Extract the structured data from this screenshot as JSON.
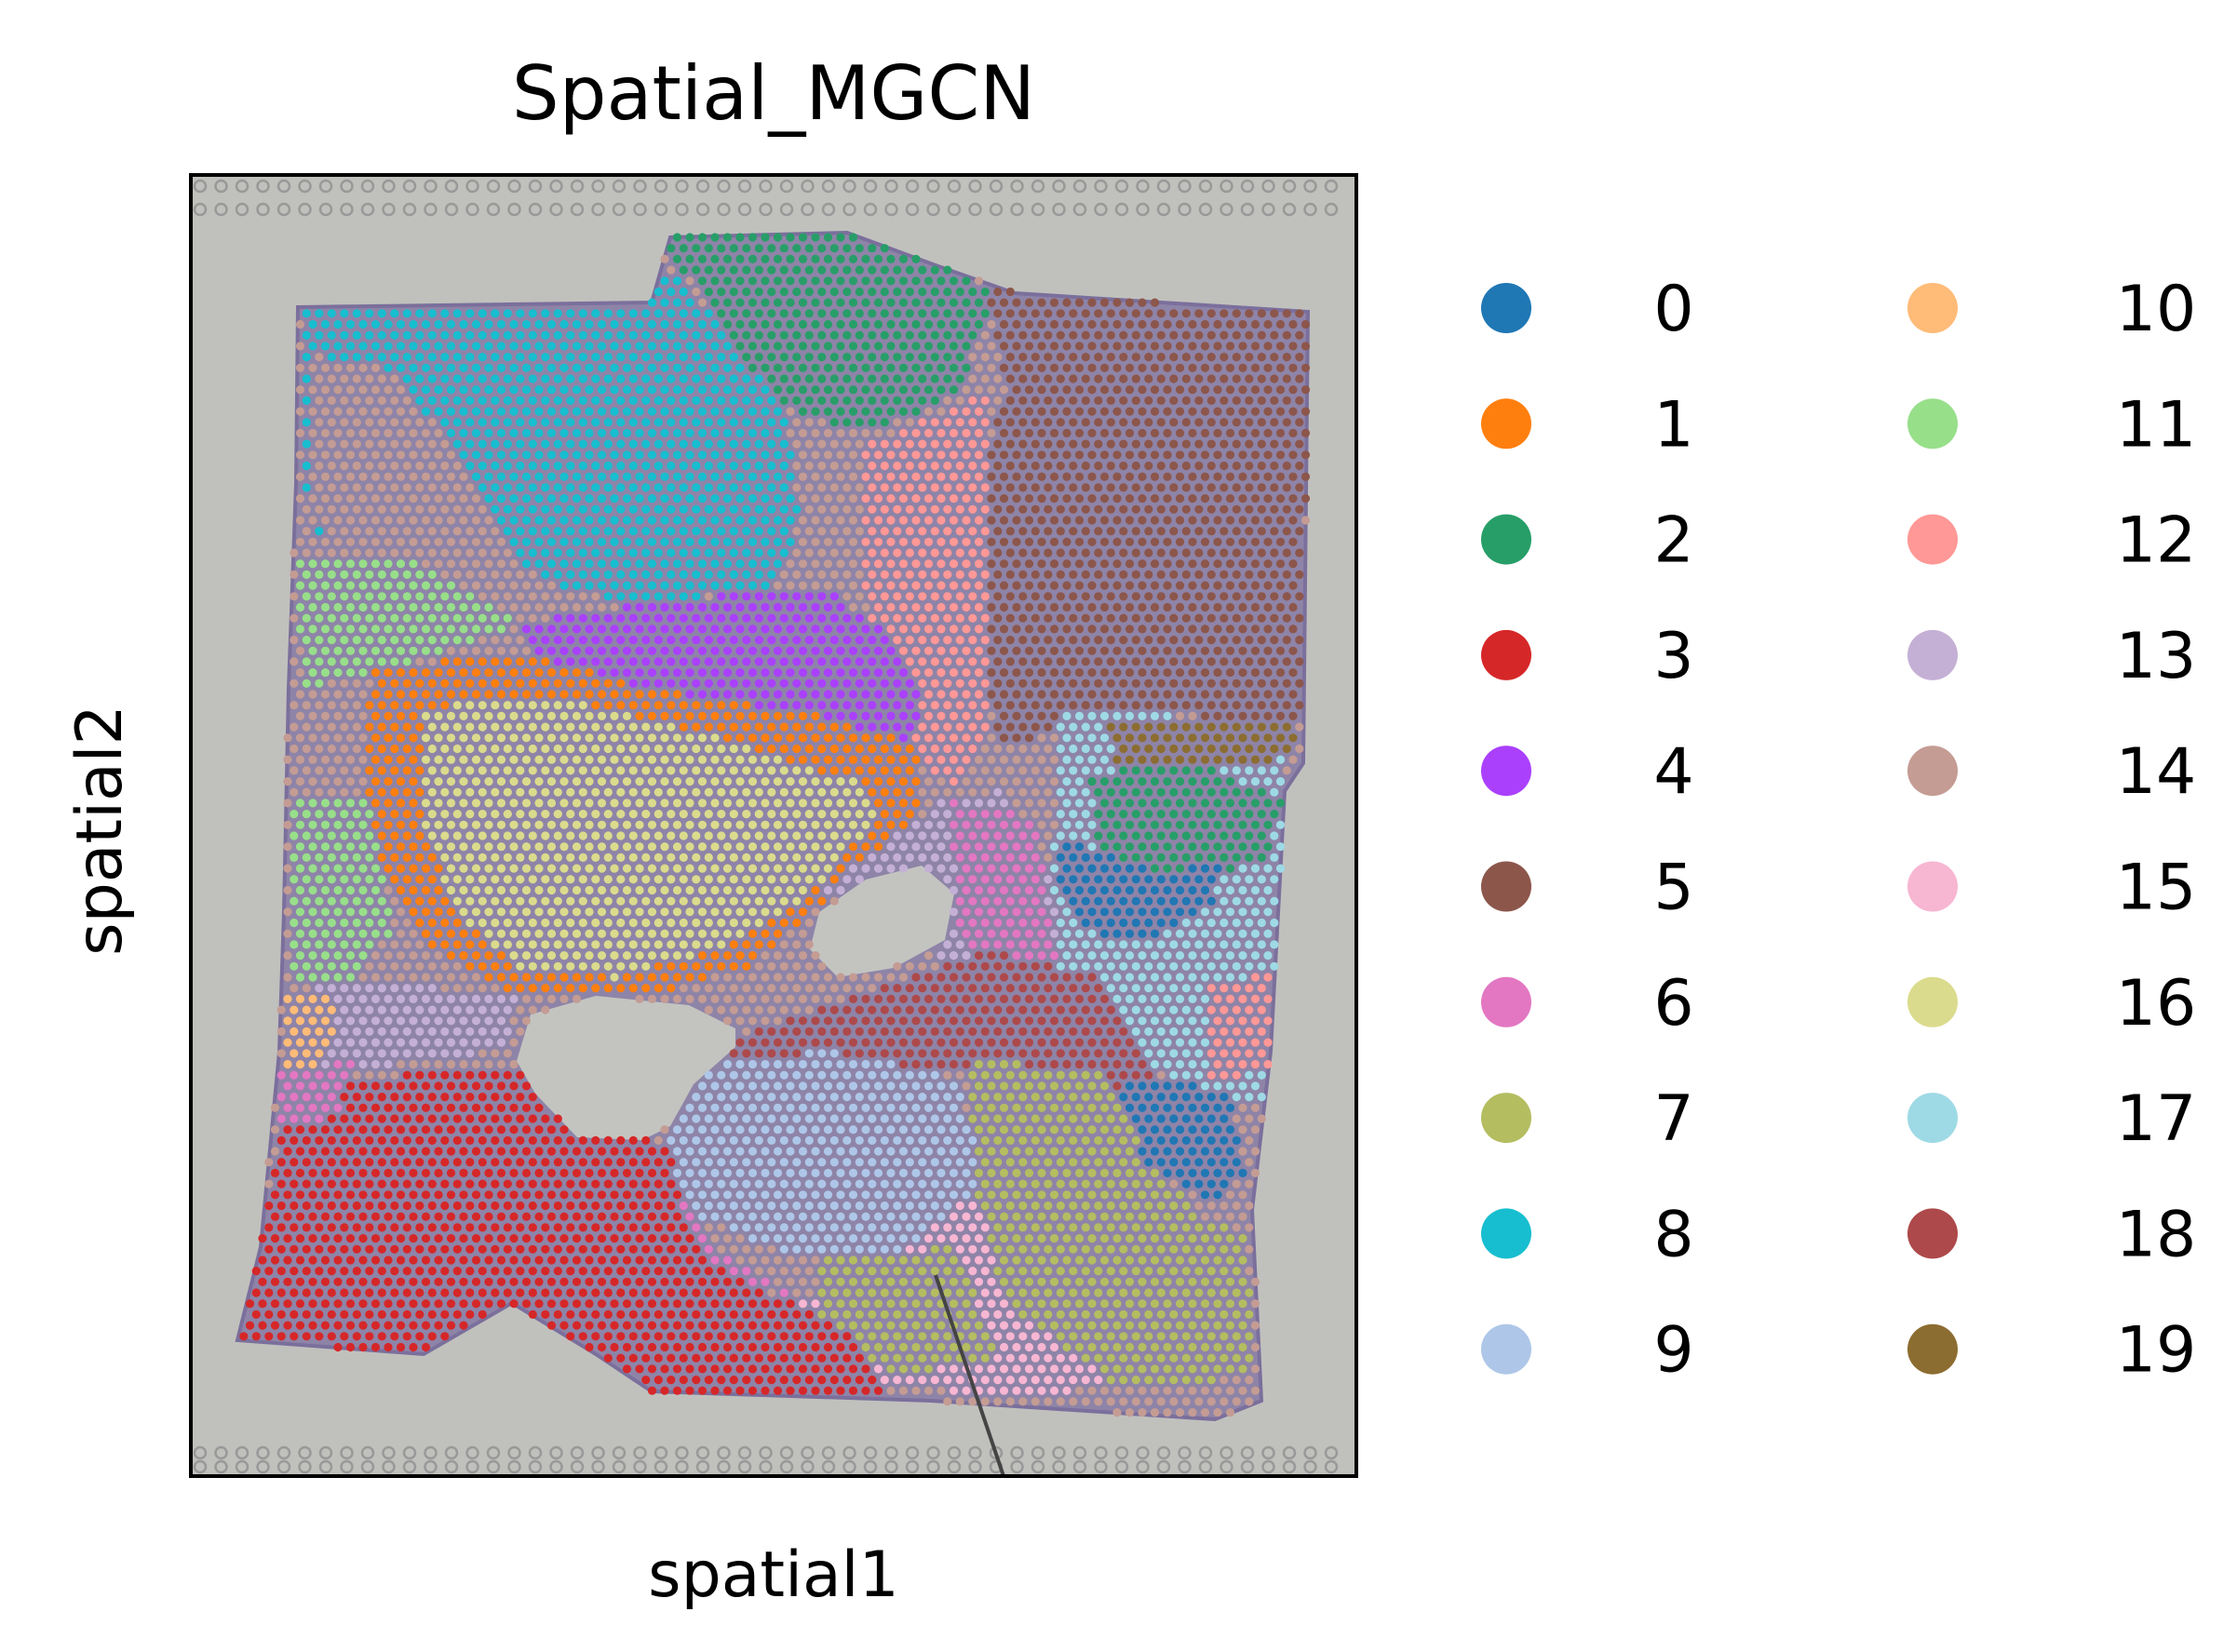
{
  "chart_data": {
    "type": "scatter",
    "title": "Spatial_MGCN",
    "xlabel": "spatial1",
    "ylabel": "spatial2",
    "background": "H&E tissue image (gray slide with purple-stained tissue section)",
    "grid": false,
    "legend_placement": "right, two columns",
    "series": [
      {
        "name": "0",
        "color": "#1f77b4"
      },
      {
        "name": "1",
        "color": "#ff7f0e"
      },
      {
        "name": "2",
        "color": "#279e68"
      },
      {
        "name": "3",
        "color": "#d62728"
      },
      {
        "name": "4",
        "color": "#aa40fc"
      },
      {
        "name": "5",
        "color": "#8c564b"
      },
      {
        "name": "6",
        "color": "#e377c2"
      },
      {
        "name": "7",
        "color": "#b5bd61"
      },
      {
        "name": "8",
        "color": "#17becf"
      },
      {
        "name": "9",
        "color": "#aec7e8"
      },
      {
        "name": "10",
        "color": "#ffbb78"
      },
      {
        "name": "11",
        "color": "#98df8a"
      },
      {
        "name": "12",
        "color": "#ff9896"
      },
      {
        "name": "13",
        "color": "#c5b0d5"
      },
      {
        "name": "14",
        "color": "#c49c94"
      },
      {
        "name": "15",
        "color": "#f7b6d2"
      },
      {
        "name": "16",
        "color": "#dbdb8d"
      },
      {
        "name": "17",
        "color": "#9edae5"
      },
      {
        "name": "18",
        "color": "#ad494a"
      },
      {
        "name": "19",
        "color": "#8c6d31"
      }
    ]
  }
}
